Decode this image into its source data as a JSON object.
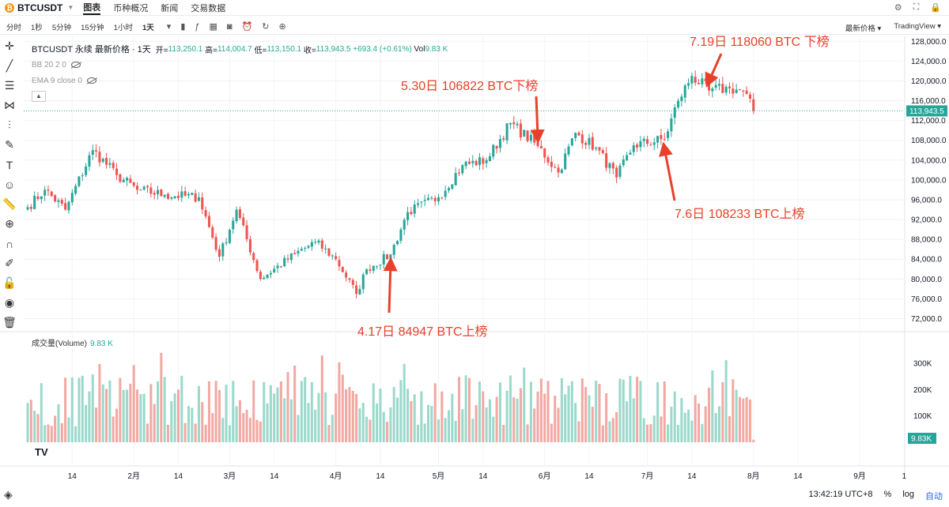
{
  "header": {
    "symbol": "BTCUSDT",
    "nav": [
      "图表",
      "币种概况",
      "新闻",
      "交易数据"
    ]
  },
  "toolbar": {
    "timeframes": [
      "分时",
      "1秒",
      "5分钟",
      "15分钟",
      "1小时",
      "1天"
    ],
    "active_timeframe": "1天",
    "price_type": "最新价格 ▾",
    "provider": "TradingView ▾"
  },
  "legend": {
    "title": "BTCUSDT 永续 最新价格 · 1天",
    "open_label": "开=",
    "open": "113,250.1",
    "high_label": "高=",
    "high": "114,004.7",
    "low_label": "低=",
    "low": "113,150.1",
    "close_label": "收=",
    "close": "113,943.5",
    "change": "+693.4 (+0.61%)",
    "vol_label": "Vol",
    "vol": "9.83 K",
    "bb": "BB 20 2 0",
    "ema": "EMA 9 close 0"
  },
  "volume_panel": {
    "label": "成交量(Volume)",
    "value": "9.83 K"
  },
  "status": {
    "time": "13:42:19 UTC+8",
    "percent": "%",
    "log": "log",
    "auto": "自动"
  },
  "chart_data": {
    "type": "candlestick",
    "colors": {
      "up": "#26a69a",
      "down": "#ef5350",
      "vol_up": "#9bd9cb",
      "vol_down": "#f2a8a3",
      "annotation": "#e8402a"
    },
    "y_axis": {
      "ticks": [
        "72,000.0",
        "76,000.0",
        "80,000.0",
        "84,000.0",
        "88,000.0",
        "92,000.0",
        "96,000.0",
        "100,000.0",
        "104,000.0",
        "108,000.0",
        "112,000.0",
        "116,000.0",
        "120,000.0",
        "124,000.0",
        "128,000.0"
      ],
      "ylim": [
        70000,
        129000
      ]
    },
    "current_price": "113,943.5",
    "volume_axis": {
      "ticks": [
        "100K",
        "200K",
        "300K"
      ]
    },
    "volume_badge": "9.83K",
    "x_axis": {
      "ticks": [
        "14",
        "2月",
        "14",
        "3月",
        "14",
        "4月",
        "14",
        "5月",
        "14",
        "6月",
        "14",
        "7月",
        "14",
        "8月",
        "14",
        "9月",
        "1"
      ]
    },
    "price_anchors": [
      {
        "date": "2025-01-01",
        "value": 94500
      },
      {
        "date": "2025-01-06",
        "value": 98000
      },
      {
        "date": "2025-01-12",
        "value": 94000
      },
      {
        "date": "2025-01-20",
        "value": 106000
      },
      {
        "date": "2025-01-27",
        "value": 101000
      },
      {
        "date": "2025-02-02",
        "value": 98000
      },
      {
        "date": "2025-02-10",
        "value": 97000
      },
      {
        "date": "2025-02-20",
        "value": 96500
      },
      {
        "date": "2025-02-26",
        "value": 84500
      },
      {
        "date": "2025-03-03",
        "value": 94000
      },
      {
        "date": "2025-03-10",
        "value": 80000
      },
      {
        "date": "2025-03-20",
        "value": 85000
      },
      {
        "date": "2025-03-26",
        "value": 87500
      },
      {
        "date": "2025-04-01",
        "value": 84000
      },
      {
        "date": "2025-04-07",
        "value": 77000
      },
      {
        "date": "2025-04-10",
        "value": 82000
      },
      {
        "date": "2025-04-17",
        "value": 84947
      },
      {
        "date": "2025-04-22",
        "value": 93500
      },
      {
        "date": "2025-05-01",
        "value": 96500
      },
      {
        "date": "2025-05-08",
        "value": 103000
      },
      {
        "date": "2025-05-15",
        "value": 104000
      },
      {
        "date": "2025-05-22",
        "value": 111500
      },
      {
        "date": "2025-05-30",
        "value": 106822
      },
      {
        "date": "2025-06-05",
        "value": 101500
      },
      {
        "date": "2025-06-10",
        "value": 109500
      },
      {
        "date": "2025-06-16",
        "value": 106500
      },
      {
        "date": "2025-06-22",
        "value": 100500
      },
      {
        "date": "2025-06-27",
        "value": 107000
      },
      {
        "date": "2025-07-06",
        "value": 108233
      },
      {
        "date": "2025-07-10",
        "value": 116000
      },
      {
        "date": "2025-07-14",
        "value": 121000
      },
      {
        "date": "2025-07-19",
        "value": 118060
      },
      {
        "date": "2025-07-25",
        "value": 118500
      },
      {
        "date": "2025-07-29",
        "value": 118000
      },
      {
        "date": "2025-08-01",
        "value": 113943.5
      }
    ],
    "annotations": [
      {
        "text": "4.17日  84947  BTC上榜",
        "date": "2025-04-17",
        "price": 84947
      },
      {
        "text": "5.30日 106822 BTC下榜",
        "date": "2025-05-30",
        "price": 106822
      },
      {
        "text": "7.6日 108233 BTC上榜",
        "date": "2025-07-06",
        "price": 108233
      },
      {
        "text": "7.19日 118060 BTC 下榜",
        "date": "2025-07-19",
        "price": 118060
      }
    ]
  }
}
